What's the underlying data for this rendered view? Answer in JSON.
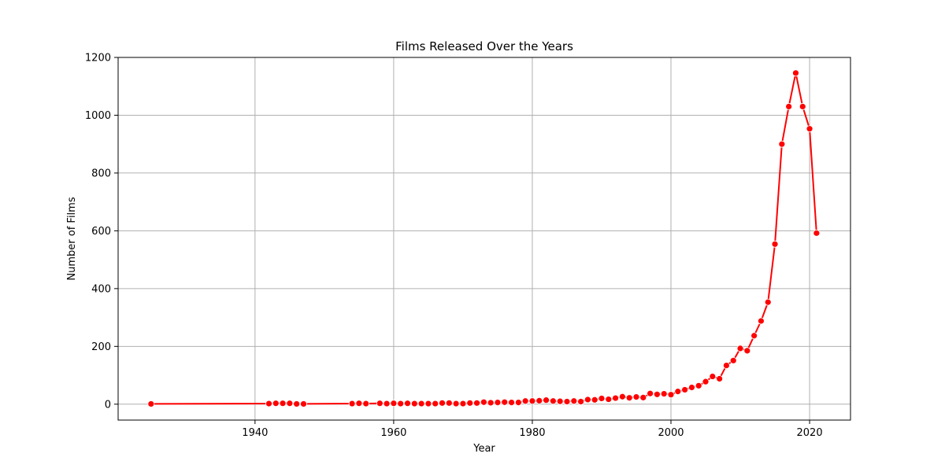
{
  "chart_data": {
    "type": "line",
    "title": "Films Released Over the Years",
    "xlabel": "Year",
    "ylabel": "Number of Films",
    "xlim": [
      1920.2,
      1925.8
    ],
    "ylim": [
      -55,
      1200
    ],
    "x_ticks": [
      1940,
      1960,
      1980,
      2000,
      2020
    ],
    "y_ticks": [
      0,
      200,
      400,
      600,
      800,
      1000,
      1200
    ],
    "grid": true,
    "line_color": "#ff0000",
    "marker_color": "#ff0000",
    "series": [
      {
        "x": [
          1925,
          1942,
          1943,
          1944,
          1945,
          1946,
          1947,
          1954,
          1955,
          1956,
          1958,
          1959,
          1960,
          1961,
          1962,
          1963,
          1964,
          1965,
          1966,
          1967,
          1968,
          1969,
          1970,
          1971,
          1972,
          1973,
          1974,
          1975,
          1976,
          1977,
          1978,
          1979,
          1980,
          1981,
          1982,
          1983,
          1984,
          1985,
          1986,
          1987,
          1988,
          1989,
          1990,
          1991,
          1992,
          1993,
          1994,
          1995,
          1996,
          1997,
          1998,
          1999,
          2000,
          2001,
          2002,
          2003,
          2004,
          2005,
          2006,
          2007,
          2008,
          2009,
          2010,
          2011,
          2012,
          2013,
          2014,
          2015,
          2016,
          2017,
          2018,
          2019,
          2020,
          2021
        ],
        "y": [
          1,
          2,
          3,
          3,
          3,
          1,
          1,
          2,
          3,
          2,
          3,
          2,
          3,
          2,
          3,
          2,
          2,
          2,
          2,
          4,
          4,
          2,
          2,
          4,
          4,
          7,
          5,
          6,
          7,
          6,
          6,
          11,
          11,
          12,
          14,
          11,
          10,
          9,
          11,
          9,
          16,
          15,
          20,
          17,
          21,
          26,
          22,
          25,
          23,
          37,
          34,
          36,
          33,
          44,
          50,
          58,
          64,
          78,
          96,
          88,
          134,
          151,
          193,
          185,
          237,
          288,
          353,
          554,
          900,
          1030,
          1146,
          1030,
          953,
          592
        ]
      }
    ]
  }
}
